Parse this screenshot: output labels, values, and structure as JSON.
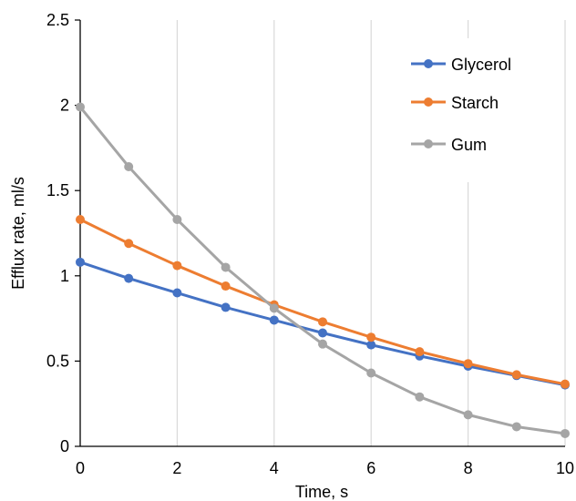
{
  "chart_data": {
    "type": "line",
    "title": "",
    "xlabel": "Time, s",
    "ylabel": "Efflux rate, ml/s",
    "x": [
      0,
      1,
      2,
      3,
      4,
      5,
      6,
      7,
      8,
      9,
      10
    ],
    "xlim": [
      0,
      10
    ],
    "ylim": [
      0,
      2.5
    ],
    "x_ticks": [
      "0",
      "2",
      "4",
      "6",
      "8",
      "10"
    ],
    "x_tick_values": [
      0,
      2,
      4,
      6,
      8,
      10
    ],
    "y_ticks": [
      "0",
      "0.5",
      "1",
      "1.5",
      "2",
      "2.5"
    ],
    "y_tick_values": [
      0,
      0.5,
      1,
      1.5,
      2,
      2.5
    ],
    "grid": "vertical",
    "legend_position": "top-right",
    "series": [
      {
        "name": "Glycerol",
        "color": "#4472c4",
        "values": [
          1.08,
          0.985,
          0.9,
          0.815,
          0.74,
          0.665,
          0.595,
          0.53,
          0.47,
          0.415,
          0.36
        ]
      },
      {
        "name": "Starch",
        "color": "#ed7d31",
        "values": [
          1.33,
          1.19,
          1.06,
          0.94,
          0.83,
          0.73,
          0.64,
          0.555,
          0.485,
          0.42,
          0.365
        ]
      },
      {
        "name": "Gum",
        "color": "#a5a5a5",
        "values": [
          1.99,
          1.64,
          1.33,
          1.05,
          0.81,
          0.6,
          0.43,
          0.29,
          0.185,
          0.115,
          0.075
        ]
      }
    ]
  }
}
